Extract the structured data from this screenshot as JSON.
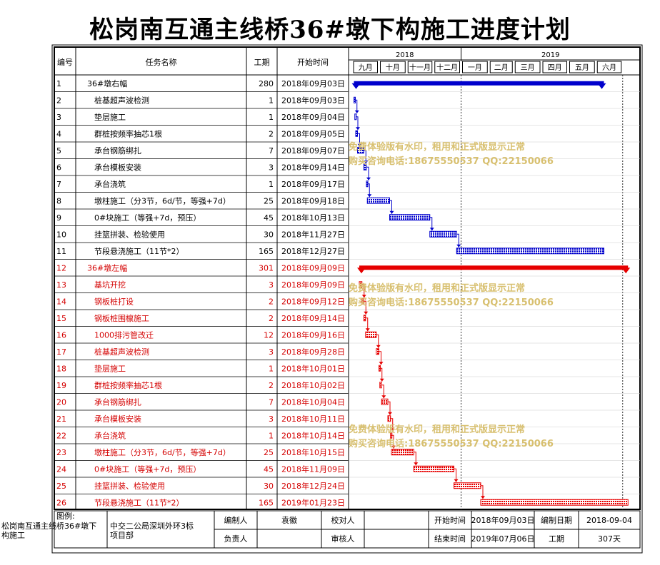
{
  "title": "松岗南互通主线桥36#墩下构施工进度计划",
  "headers": {
    "id": "编号",
    "name": "任务名称",
    "dur": "工期",
    "start": "开始时间"
  },
  "timescale": {
    "years": [
      "2018",
      "2019"
    ],
    "months": [
      "九月",
      "十月",
      "十一月",
      "十二月",
      "一月",
      "二月",
      "三月",
      "四月",
      "五月",
      "六月"
    ]
  },
  "watermark": {
    "line1": "免费体验版有水印，租用和正式版显示正常",
    "line2": "购买咨询电话:18675550537 QQ:22150066"
  },
  "colors": {
    "group1": "#0000cc",
    "group2": "#e60000",
    "text_red": "#d40000",
    "watermark": "#d8c070"
  },
  "chart_data": {
    "type": "gantt",
    "tasks": [
      {
        "id": "1",
        "name": "36#墩右幅",
        "duration": 280,
        "start": "2018年09月03日",
        "start_day": "2018-09-03",
        "group": 1,
        "summary": true
      },
      {
        "id": "2",
        "name": "桩基超声波检测",
        "duration": 1,
        "start": "2018年09月03日",
        "start_day": "2018-09-03",
        "group": 1
      },
      {
        "id": "3",
        "name": "垫层施工",
        "duration": 1,
        "start": "2018年09月04日",
        "start_day": "2018-09-04",
        "group": 1
      },
      {
        "id": "4",
        "name": "群桩按频率抽芯1根",
        "duration": 2,
        "start": "2018年09月05日",
        "start_day": "2018-09-05",
        "group": 1
      },
      {
        "id": "5",
        "name": "承台钢筋绑扎",
        "duration": 7,
        "start": "2018年09月07日",
        "start_day": "2018-09-07",
        "group": 1
      },
      {
        "id": "6",
        "name": "承台模板安装",
        "duration": 3,
        "start": "2018年09月14日",
        "start_day": "2018-09-14",
        "group": 1
      },
      {
        "id": "7",
        "name": "承台浇筑",
        "duration": 1,
        "start": "2018年09月17日",
        "start_day": "2018-09-17",
        "group": 1
      },
      {
        "id": "8",
        "name": "墩柱施工（分3节，6d/节，等强+7d）",
        "duration": 25,
        "start": "2018年09月18日",
        "start_day": "2018-09-18",
        "group": 1
      },
      {
        "id": "9",
        "name": "0#块施工（等强+7d，预压）",
        "duration": 45,
        "start": "2018年10月13日",
        "start_day": "2018-10-13",
        "group": 1
      },
      {
        "id": "10",
        "name": "挂篮拼装、检验使用",
        "duration": 30,
        "start": "2018年11月27日",
        "start_day": "2018-11-27",
        "group": 1
      },
      {
        "id": "11",
        "name": "节段悬浇施工（11节*2）",
        "duration": 165,
        "start": "2018年12月27日",
        "start_day": "2018-12-27",
        "group": 1
      },
      {
        "id": "12",
        "name": "36#墩左幅",
        "duration": 301,
        "start": "2018年09月09日",
        "start_day": "2018-09-09",
        "group": 2,
        "summary": true
      },
      {
        "id": "13",
        "name": "基坑开挖",
        "duration": 3,
        "start": "2018年09月09日",
        "start_day": "2018-09-09",
        "group": 2
      },
      {
        "id": "14",
        "name": "钢板桩打设",
        "duration": 2,
        "start": "2018年09月12日",
        "start_day": "2018-09-12",
        "group": 2
      },
      {
        "id": "15",
        "name": "钢板桩围檩施工",
        "duration": 2,
        "start": "2018年09月14日",
        "start_day": "2018-09-14",
        "group": 2
      },
      {
        "id": "16",
        "name": "1000排污管改迁",
        "duration": 12,
        "start": "2018年09月16日",
        "start_day": "2018-09-16",
        "group": 2
      },
      {
        "id": "17",
        "name": "桩基超声波检测",
        "duration": 3,
        "start": "2018年09月28日",
        "start_day": "2018-09-28",
        "group": 2
      },
      {
        "id": "18",
        "name": "垫层施工",
        "duration": 1,
        "start": "2018年10月01日",
        "start_day": "2018-10-01",
        "group": 2
      },
      {
        "id": "19",
        "name": "群桩按频率抽芯1根",
        "duration": 2,
        "start": "2018年10月02日",
        "start_day": "2018-10-02",
        "group": 2
      },
      {
        "id": "20",
        "name": "承台钢筋绑扎",
        "duration": 7,
        "start": "2018年10月04日",
        "start_day": "2018-10-04",
        "group": 2
      },
      {
        "id": "21",
        "name": "承台模板安装",
        "duration": 3,
        "start": "2018年10月11日",
        "start_day": "2018-10-11",
        "group": 2
      },
      {
        "id": "22",
        "name": "承台浇筑",
        "duration": 1,
        "start": "2018年10月14日",
        "start_day": "2018-10-14",
        "group": 2
      },
      {
        "id": "23",
        "name": "墩柱施工（分3节，6d/节，等强+7d）",
        "duration": 25,
        "start": "2018年10月15日",
        "start_day": "2018-10-15",
        "group": 2
      },
      {
        "id": "24",
        "name": "0#块施工（等强+7d，预压）",
        "duration": 45,
        "start": "2018年11月09日",
        "start_day": "2018-11-09",
        "group": 2
      },
      {
        "id": "25",
        "name": "挂篮拼装、检验使用",
        "duration": 30,
        "start": "2018年12月24日",
        "start_day": "2018-12-24",
        "group": 2
      },
      {
        "id": "26",
        "name": "节段悬浇施工（11节*2）",
        "duration": 165,
        "start": "2019年01月23日",
        "start_day": "2019-01-23",
        "group": 2
      }
    ]
  },
  "footer": {
    "legend_label": "图例:",
    "project": "松岗南互通主线桥36#墩下构施工",
    "org": "中交二公局深圳外环3标项目部",
    "compiler_label": "编制人",
    "compiler": "袁徽",
    "checker_label": "校对人",
    "checker": "",
    "leader_label": "负责人",
    "leader": "",
    "reviewer_label": "审核人",
    "reviewer": "",
    "start_label": "开始时间",
    "start_value": "2018年09月03日",
    "end_label": "结束时间",
    "end_value": "2019年07月06日",
    "date_label": "编制日期",
    "date_value": "2018-09-04",
    "dur_label": "工期",
    "dur_value": "307天"
  }
}
